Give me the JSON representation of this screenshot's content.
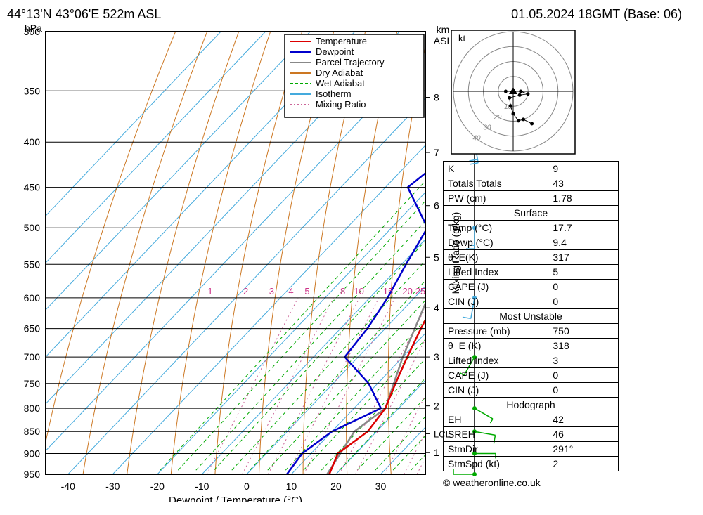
{
  "header": {
    "location": "44°13'N 43°06'E 522m ASL",
    "date": "01.05.2024 18GMT (Base: 06)"
  },
  "axes": {
    "left_label": "hPa",
    "right_label1": "km ASL",
    "right_label2": "Mixing Ratio (g/kg)",
    "bottom_label": "Dewpoint / Temperature (°C)",
    "pressure_ticks": [
      300,
      350,
      400,
      450,
      500,
      550,
      600,
      650,
      700,
      750,
      800,
      850,
      900,
      950
    ],
    "temp_ticks": [
      -40,
      -30,
      -20,
      -10,
      0,
      10,
      20,
      30
    ],
    "km_ticks": [
      1,
      2,
      3,
      4,
      5,
      6,
      7,
      8
    ],
    "lcl_label": "LCL"
  },
  "legend": {
    "items": [
      {
        "label": "Temperature",
        "color": "#dd0000",
        "dash": ""
      },
      {
        "label": "Dewpoint",
        "color": "#0000cc",
        "dash": ""
      },
      {
        "label": "Parcel Trajectory",
        "color": "#888888",
        "dash": ""
      },
      {
        "label": "Dry Adiabat",
        "color": "#cc7722",
        "dash": ""
      },
      {
        "label": "Wet Adiabat",
        "color": "#00aa00",
        "dash": "4,3"
      },
      {
        "label": "Isotherm",
        "color": "#44aadd",
        "dash": ""
      },
      {
        "label": "Mixing Ratio",
        "color": "#cc6699",
        "dash": "2,3"
      }
    ]
  },
  "mixing_ratio_labels": {
    "values": [
      "1",
      "2",
      "3",
      "4",
      "5",
      "8",
      "10",
      "15",
      "20",
      "25"
    ],
    "color": "#cc3388"
  },
  "skewt": {
    "colors": {
      "isotherm": "#44aadd",
      "dry_adiabat": "#cc7722",
      "wet_adiabat": "#00aa00",
      "mixing_ratio": "#cc6699",
      "temperature": "#dd0000",
      "dewpoint": "#0000cc",
      "parcel": "#888888",
      "grid": "#000000"
    },
    "temperature_profile": [
      {
        "p": 950,
        "t": 18.5
      },
      {
        "p": 900,
        "t": 16
      },
      {
        "p": 850,
        "t": 18
      },
      {
        "p": 800,
        "t": 17
      },
      {
        "p": 750,
        "t": 14
      },
      {
        "p": 700,
        "t": 11
      },
      {
        "p": 650,
        "t": 8
      },
      {
        "p": 600,
        "t": 5
      },
      {
        "p": 550,
        "t": 1
      },
      {
        "p": 500,
        "t": -3
      },
      {
        "p": 450,
        "t": -7
      },
      {
        "p": 400,
        "t": -12
      },
      {
        "p": 350,
        "t": -18
      },
      {
        "p": 300,
        "t": -25
      }
    ],
    "dewpoint_profile": [
      {
        "p": 950,
        "t": 9
      },
      {
        "p": 900,
        "t": 8
      },
      {
        "p": 850,
        "t": 10
      },
      {
        "p": 800,
        "t": 16
      },
      {
        "p": 750,
        "t": 8
      },
      {
        "p": 700,
        "t": -3
      },
      {
        "p": 650,
        "t": -4
      },
      {
        "p": 600,
        "t": -6
      },
      {
        "p": 550,
        "t": -9
      },
      {
        "p": 500,
        "t": -12
      },
      {
        "p": 450,
        "t": -25
      },
      {
        "p": 400,
        "t": -22
      },
      {
        "p": 350,
        "t": -25
      },
      {
        "p": 300,
        "t": -33
      }
    ],
    "parcel_profile": [
      {
        "p": 950,
        "t": 18
      },
      {
        "p": 850,
        "t": 15
      },
      {
        "p": 800,
        "t": 17
      },
      {
        "p": 700,
        "t": 10
      },
      {
        "p": 600,
        "t": 3
      },
      {
        "p": 500,
        "t": -5
      },
      {
        "p": 400,
        "t": -16
      },
      {
        "p": 300,
        "t": -32
      }
    ]
  },
  "wind_barbs": {
    "color_low": "#00aa00",
    "color_high": "#44aadd",
    "barbs": [
      {
        "p": 950,
        "speed": 5,
        "dir": 90
      },
      {
        "p": 900,
        "speed": 5,
        "dir": 270
      },
      {
        "p": 850,
        "speed": 10,
        "dir": 280
      },
      {
        "p": 800,
        "speed": 5,
        "dir": 300
      },
      {
        "p": 700,
        "speed": 5,
        "dir": 30
      },
      {
        "p": 600,
        "speed": 10,
        "dir": 10
      },
      {
        "p": 500,
        "speed": 15,
        "dir": 0
      },
      {
        "p": 400,
        "speed": 20,
        "dir": 350
      },
      {
        "p": 350,
        "speed": 20,
        "dir": 340
      },
      {
        "p": 300,
        "speed": 25,
        "dir": 330
      }
    ]
  },
  "hodograph_box": {
    "label": "kt",
    "rings": [
      10,
      20,
      30,
      40
    ],
    "ring_color": "#888888"
  },
  "indices": {
    "rows1": [
      {
        "k": "K",
        "v": "9"
      },
      {
        "k": "Totals Totals",
        "v": "43"
      },
      {
        "k": "PW (cm)",
        "v": "1.78"
      }
    ],
    "surface_head": "Surface",
    "rows2": [
      {
        "k": "Temp (°C)",
        "v": "17.7"
      },
      {
        "k": "Dewp (°C)",
        "v": "9.4"
      },
      {
        "k": "θ_E(K)",
        "v": "317"
      },
      {
        "k": "Lifted Index",
        "v": "5"
      },
      {
        "k": "CAPE (J)",
        "v": "0"
      },
      {
        "k": "CIN (J)",
        "v": "0"
      }
    ],
    "mu_head": "Most Unstable",
    "rows3": [
      {
        "k": "Pressure (mb)",
        "v": "750"
      },
      {
        "k": "θ_E (K)",
        "v": "318"
      },
      {
        "k": "Lifted Index",
        "v": "3"
      },
      {
        "k": "CAPE (J)",
        "v": "0"
      },
      {
        "k": "CIN (J)",
        "v": "0"
      }
    ],
    "hodo_head": "Hodograph",
    "rows4": [
      {
        "k": "EH",
        "v": "42"
      },
      {
        "k": "SREH",
        "v": "46"
      },
      {
        "k": "StmDir",
        "v": "291°"
      },
      {
        "k": "StmSpd (kt)",
        "v": "2"
      }
    ]
  },
  "copyright": "© weatheronline.co.uk"
}
